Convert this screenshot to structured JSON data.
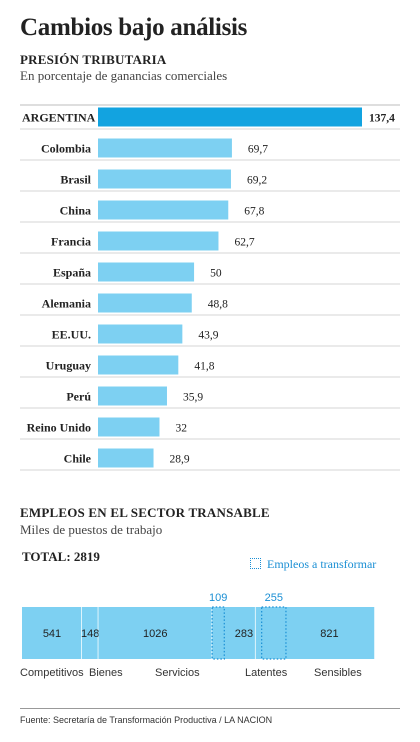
{
  "title": "Cambios bajo análisis",
  "chart_data": [
    {
      "type": "bar",
      "title": "PRESIÓN TRIBUTARIA",
      "subtitle": "En porcentaje de ganancias comerciales",
      "categories": [
        "ARGENTINA",
        "Colombia",
        "Brasil",
        "China",
        "Francia",
        "España",
        "Alemania",
        "EE.UU.",
        "Uruguay",
        "Perú",
        "Reino Unido",
        "Chile"
      ],
      "values": [
        137.4,
        69.7,
        69.2,
        67.8,
        62.7,
        50,
        48.8,
        43.9,
        41.8,
        35.9,
        32,
        28.9
      ],
      "value_labels": [
        "137,4",
        "69,7",
        "69,2",
        "67,8",
        "62,7",
        "50",
        "48,8",
        "43,9",
        "41,8",
        "35,9",
        "32",
        "28,9"
      ],
      "highlight": "ARGENTINA",
      "colors": {
        "highlight": "#12a3e0",
        "bar": "#7dd0f2"
      }
    },
    {
      "type": "bar",
      "title": "EMPLEOS EN EL SECTOR TRANSABLE",
      "subtitle": "Miles de puestos de trabajo",
      "total_label": "TOTAL: 2819",
      "legend": "Empleos a transformar",
      "segments": [
        {
          "value": 541,
          "label": "541",
          "category": "Competitivos"
        },
        {
          "value": 148,
          "label": "148",
          "category": "Bienes"
        },
        {
          "value": 1026,
          "label": "1026",
          "category": "Servicios"
        },
        {
          "value": 392,
          "label": "283",
          "category": "Latentes",
          "transform_value": 109,
          "transform_label": "109"
        },
        {
          "value": 1076,
          "label": "821",
          "category": "Sensibles",
          "transform_value": 255,
          "transform_label": "255"
        }
      ],
      "colors": {
        "bar": "#7dd0f2",
        "accent": "#1a8fd4"
      }
    }
  ],
  "source": "Fuente: Secretaría de Transformación Productiva / LA NACION"
}
